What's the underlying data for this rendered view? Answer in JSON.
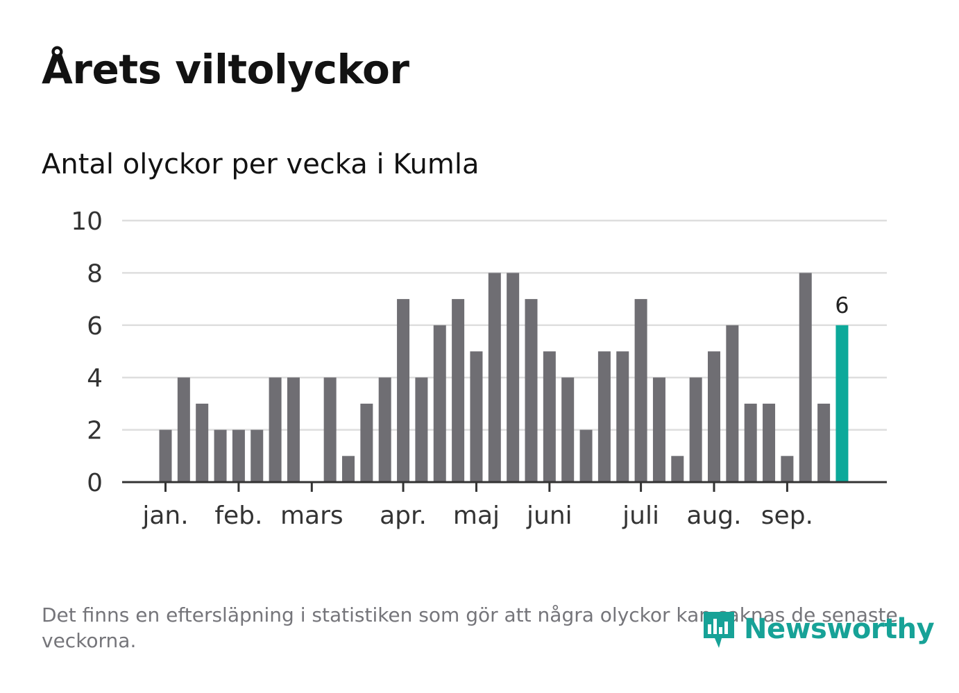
{
  "header": {
    "title": "Årets viltolyckor",
    "subtitle": "Antal olyckor per vecka i Kumla"
  },
  "footer": {
    "note": "Det finns en eftersläpning i statistiken som gör att några olyckor kan saknas de senaste veckorna.",
    "brand": "Newsworthy",
    "brand_icon": "newsworthy-logo-icon"
  },
  "colors": {
    "bar": "#6f6e73",
    "highlight": "#0ca99a",
    "grid": "#dedede",
    "axis": "#333333",
    "brand": "#17a297"
  },
  "chart_data": {
    "type": "bar",
    "title": "Årets viltolyckor",
    "subtitle": "Antal olyckor per vecka i Kumla",
    "values": [
      2,
      4,
      3,
      2,
      2,
      2,
      4,
      4,
      0,
      4,
      1,
      3,
      4,
      7,
      4,
      6,
      7,
      5,
      8,
      8,
      7,
      5,
      4,
      2,
      5,
      5,
      7,
      4,
      1,
      4,
      5,
      6,
      3,
      3,
      1,
      8,
      3,
      6
    ],
    "highlight_index": 37,
    "highlight_label": "6",
    "month_labels": [
      {
        "label": "jan.",
        "week": 1
      },
      {
        "label": "feb.",
        "week": 5
      },
      {
        "label": "mars",
        "week": 9
      },
      {
        "label": "apr.",
        "week": 14
      },
      {
        "label": "maj",
        "week": 18
      },
      {
        "label": "juni",
        "week": 22
      },
      {
        "label": "juli",
        "week": 27
      },
      {
        "label": "aug.",
        "week": 31
      },
      {
        "label": "sep.",
        "week": 35
      }
    ],
    "yticks": [
      0,
      2,
      4,
      6,
      8,
      10
    ],
    "ylim": [
      0,
      10
    ],
    "grid": true,
    "xlabel": "",
    "ylabel": ""
  }
}
